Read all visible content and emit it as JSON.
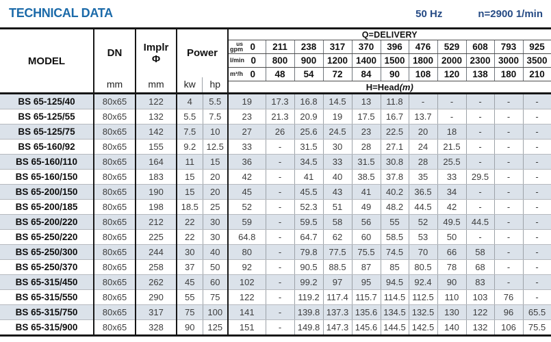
{
  "page": {
    "title": "TECHNICAL DATA",
    "frequency": "50 Hz",
    "speed": "n=2900 1/min"
  },
  "table": {
    "headers": {
      "model": "MODEL",
      "dn": "DN",
      "implr_line1": "Implr",
      "implr_line2": "Φ",
      "power": "Power",
      "unit_mm_dn": "mm",
      "unit_mm_implr": "mm",
      "unit_kw": "kw",
      "unit_hp": "hp",
      "delivery_title": "Q=DELIVERY",
      "head_prefix": "H=Head",
      "head_unit": "(m)",
      "gpm_unit_top": "us",
      "gpm_unit_bottom": "gpm",
      "lmin_unit": "l/min",
      "m3h_unit": "m³/h",
      "gpm": [
        "0",
        "211",
        "238",
        "317",
        "370",
        "396",
        "476",
        "529",
        "608",
        "793",
        "925"
      ],
      "lmin": [
        "0",
        "800",
        "900",
        "1200",
        "1400",
        "1500",
        "1800",
        "2000",
        "2300",
        "3000",
        "3500"
      ],
      "m3h": [
        "0",
        "48",
        "54",
        "72",
        "84",
        "90",
        "108",
        "120",
        "138",
        "180",
        "210"
      ]
    },
    "rows": [
      {
        "model": "BS 65-125/40",
        "dn": "80x65",
        "implr": "122",
        "kw": "4",
        "hp": "5.5",
        "head": [
          "19",
          "17.3",
          "16.8",
          "14.5",
          "13",
          "11.8",
          "-",
          "-",
          "-",
          "-",
          "-"
        ]
      },
      {
        "model": "BS 65-125/55",
        "dn": "80x65",
        "implr": "132",
        "kw": "5.5",
        "hp": "7.5",
        "head": [
          "23",
          "21.3",
          "20.9",
          "19",
          "17.5",
          "16.7",
          "13.7",
          "-",
          "-",
          "-",
          "-"
        ]
      },
      {
        "model": "BS 65-125/75",
        "dn": "80x65",
        "implr": "142",
        "kw": "7.5",
        "hp": "10",
        "head": [
          "27",
          "26",
          "25.6",
          "24.5",
          "23",
          "22.5",
          "20",
          "18",
          "-",
          "-",
          "-"
        ]
      },
      {
        "model": "BS 65-160/92",
        "dn": "80x65",
        "implr": "155",
        "kw": "9.2",
        "hp": "12.5",
        "head": [
          "33",
          "-",
          "31.5",
          "30",
          "28",
          "27.1",
          "24",
          "21.5",
          "-",
          "-",
          "-"
        ]
      },
      {
        "model": "BS 65-160/110",
        "dn": "80x65",
        "implr": "164",
        "kw": "11",
        "hp": "15",
        "head": [
          "36",
          "-",
          "34.5",
          "33",
          "31.5",
          "30.8",
          "28",
          "25.5",
          "-",
          "-",
          "-"
        ]
      },
      {
        "model": "BS 65-160/150",
        "dn": "80x65",
        "implr": "183",
        "kw": "15",
        "hp": "20",
        "head": [
          "42",
          "-",
          "41",
          "40",
          "38.5",
          "37.8",
          "35",
          "33",
          "29.5",
          "-",
          "-"
        ]
      },
      {
        "model": "BS 65-200/150",
        "dn": "80x65",
        "implr": "190",
        "kw": "15",
        "hp": "20",
        "head": [
          "45",
          "-",
          "45.5",
          "43",
          "41",
          "40.2",
          "36.5",
          "34",
          "-",
          "-",
          "-"
        ]
      },
      {
        "model": "BS 65-200/185",
        "dn": "80x65",
        "implr": "198",
        "kw": "18.5",
        "hp": "25",
        "head": [
          "52",
          "-",
          "52.3",
          "51",
          "49",
          "48.2",
          "44.5",
          "42",
          "-",
          "-",
          "-"
        ]
      },
      {
        "model": "BS 65-200/220",
        "dn": "80x65",
        "implr": "212",
        "kw": "22",
        "hp": "30",
        "head": [
          "59",
          "-",
          "59.5",
          "58",
          "56",
          "55",
          "52",
          "49.5",
          "44.5",
          "-",
          "-"
        ]
      },
      {
        "model": "BS 65-250/220",
        "dn": "80x65",
        "implr": "225",
        "kw": "22",
        "hp": "30",
        "head": [
          "64.8",
          "-",
          "64.7",
          "62",
          "60",
          "58.5",
          "53",
          "50",
          "-",
          "-",
          "-"
        ]
      },
      {
        "model": "BS 65-250/300",
        "dn": "80x65",
        "implr": "244",
        "kw": "30",
        "hp": "40",
        "head": [
          "80",
          "-",
          "79.8",
          "77.5",
          "75.5",
          "74.5",
          "70",
          "66",
          "58",
          "-",
          "-"
        ]
      },
      {
        "model": "BS 65-250/370",
        "dn": "80x65",
        "implr": "258",
        "kw": "37",
        "hp": "50",
        "head": [
          "92",
          "-",
          "90.5",
          "88.5",
          "87",
          "85",
          "80.5",
          "78",
          "68",
          "-",
          "-"
        ]
      },
      {
        "model": "BS 65-315/450",
        "dn": "80x65",
        "implr": "262",
        "kw": "45",
        "hp": "60",
        "head": [
          "102",
          "-",
          "99.2",
          "97",
          "95",
          "94.5",
          "92.4",
          "90",
          "83",
          "-",
          "-"
        ]
      },
      {
        "model": "BS 65-315/550",
        "dn": "80x65",
        "implr": "290",
        "kw": "55",
        "hp": "75",
        "head": [
          "122",
          "-",
          "119.2",
          "117.4",
          "115.7",
          "114.5",
          "112.5",
          "110",
          "103",
          "76",
          "-"
        ]
      },
      {
        "model": "BS 65-315/750",
        "dn": "80x65",
        "implr": "317",
        "kw": "75",
        "hp": "100",
        "head": [
          "141",
          "-",
          "139.8",
          "137.3",
          "135.6",
          "134.5",
          "132.5",
          "130",
          "122",
          "96",
          "65.5"
        ]
      },
      {
        "model": "BS 65-315/900",
        "dn": "80x65",
        "implr": "328",
        "kw": "90",
        "hp": "125",
        "head": [
          "151",
          "-",
          "149.8",
          "147.3",
          "145.6",
          "144.5",
          "142.5",
          "140",
          "132",
          "106",
          "75.5"
        ]
      }
    ]
  }
}
